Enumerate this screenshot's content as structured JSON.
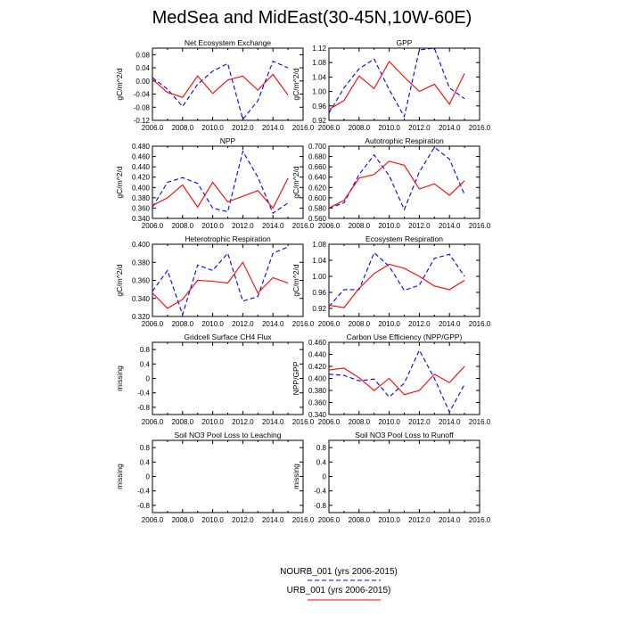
{
  "title": "MedSea and MidEast(30-45N,10W-60E)",
  "legend": [
    {
      "label": "NOURB_001 (yrs 2006-2015)",
      "color": "#0000ff",
      "dash": true
    },
    {
      "label": "URB_001 (yrs 2006-2015)",
      "color": "#ff0000",
      "dash": false
    }
  ],
  "chart_data": [
    {
      "type": "line",
      "title": "Net Ecosystem Exchange",
      "ylabel": "gC/m^2/d",
      "xlim": [
        2006,
        2016
      ],
      "ylim": [
        -0.12,
        0.1
      ],
      "xticks": [
        "2006.0",
        "2008.0",
        "2010.0",
        "2012.0",
        "2014.0",
        "2016.0"
      ],
      "yticks": [
        {
          "v": 0.08,
          "t": "0.08"
        },
        {
          "v": 0.04,
          "t": "0.04"
        },
        {
          "v": 0.0,
          "t": "0.00"
        },
        {
          "v": -0.04,
          "t": "-0.04"
        },
        {
          "v": -0.08,
          "t": "-0.08"
        },
        {
          "v": -0.12,
          "t": "-0.12"
        }
      ],
      "x": [
        2006,
        2007,
        2008,
        2009,
        2010,
        2011,
        2012,
        2013,
        2014,
        2015
      ],
      "series": [
        {
          "name": "NOURB_001",
          "values": [
            0.01,
            -0.025,
            -0.078,
            -0.01,
            0.03,
            0.053,
            -0.117,
            -0.06,
            0.06,
            0.04
          ]
        },
        {
          "name": "URB_001",
          "values": [
            0.005,
            -0.035,
            -0.05,
            0.015,
            -0.038,
            0.003,
            0.015,
            -0.028,
            0.02,
            -0.043
          ]
        }
      ]
    },
    {
      "type": "line",
      "title": "GPP",
      "ylabel": "gC/m^2/d",
      "xlim": [
        2006,
        2016
      ],
      "ylim": [
        0.92,
        1.12
      ],
      "xticks": [
        "2006.0",
        "2008.0",
        "2010.0",
        "2012.0",
        "2014.0",
        "2016.0"
      ],
      "yticks": [
        {
          "v": 1.12,
          "t": "1.12"
        },
        {
          "v": 1.08,
          "t": "1.08"
        },
        {
          "v": 1.04,
          "t": "1.04"
        },
        {
          "v": 1.0,
          "t": "1.00"
        },
        {
          "v": 0.96,
          "t": "0.96"
        },
        {
          "v": 0.92,
          "t": "0.92"
        }
      ],
      "x": [
        2006,
        2007,
        2008,
        2009,
        2010,
        2011,
        2012,
        2013,
        2014,
        2015
      ],
      "series": [
        {
          "name": "NOURB_001",
          "values": [
            0.94,
            1.01,
            1.063,
            1.09,
            1.005,
            0.93,
            1.115,
            1.12,
            1.01,
            0.98
          ]
        },
        {
          "name": "URB_001",
          "values": [
            0.95,
            0.975,
            1.043,
            1.008,
            1.083,
            1.04,
            1.0,
            1.02,
            0.965,
            1.05
          ]
        }
      ]
    },
    {
      "type": "line",
      "title": "NPP",
      "ylabel": "gC/m^2/d",
      "xlim": [
        2006,
        2016
      ],
      "ylim": [
        0.34,
        0.48
      ],
      "xticks": [
        "2006.0",
        "2008.0",
        "2010.0",
        "2012.0",
        "2014.0",
        "2016.0"
      ],
      "yticks": [
        {
          "v": 0.48,
          "t": "0.480"
        },
        {
          "v": 0.46,
          "t": "0.460"
        },
        {
          "v": 0.44,
          "t": "0.440"
        },
        {
          "v": 0.42,
          "t": "0.420"
        },
        {
          "v": 0.4,
          "t": "0.400"
        },
        {
          "v": 0.38,
          "t": "0.380"
        },
        {
          "v": 0.36,
          "t": "0.360"
        },
        {
          "v": 0.34,
          "t": "0.340"
        }
      ],
      "x": [
        2006,
        2007,
        2008,
        2009,
        2010,
        2011,
        2012,
        2013,
        2014,
        2015
      ],
      "series": [
        {
          "name": "NOURB_001",
          "values": [
            0.362,
            0.41,
            0.419,
            0.408,
            0.36,
            0.353,
            0.47,
            0.42,
            0.35,
            0.37
          ]
        },
        {
          "name": "URB_001",
          "values": [
            0.365,
            0.38,
            0.405,
            0.362,
            0.41,
            0.372,
            0.383,
            0.394,
            0.36,
            0.418
          ]
        }
      ]
    },
    {
      "type": "line",
      "title": "Autotrophic Respiration",
      "ylabel": "gC/m^2/d",
      "xlim": [
        2006,
        2016
      ],
      "ylim": [
        0.56,
        0.7
      ],
      "xticks": [
        "2006.0",
        "2008.0",
        "2010.0",
        "2012.0",
        "2014.0",
        "2016.0"
      ],
      "yticks": [
        {
          "v": 0.7,
          "t": "0.700"
        },
        {
          "v": 0.68,
          "t": "0.680"
        },
        {
          "v": 0.66,
          "t": "0.660"
        },
        {
          "v": 0.64,
          "t": "0.640"
        },
        {
          "v": 0.62,
          "t": "0.620"
        },
        {
          "v": 0.6,
          "t": "0.600"
        },
        {
          "v": 0.58,
          "t": "0.580"
        },
        {
          "v": 0.56,
          "t": "0.560"
        }
      ],
      "x": [
        2006,
        2007,
        2008,
        2009,
        2010,
        2011,
        2012,
        2013,
        2014,
        2015
      ],
      "series": [
        {
          "name": "NOURB_001",
          "values": [
            0.58,
            0.59,
            0.645,
            0.683,
            0.643,
            0.577,
            0.65,
            0.698,
            0.675,
            0.606
          ]
        },
        {
          "name": "URB_001",
          "values": [
            0.58,
            0.595,
            0.638,
            0.645,
            0.671,
            0.663,
            0.617,
            0.627,
            0.605,
            0.633
          ]
        }
      ]
    },
    {
      "type": "line",
      "title": "Heterotrophic Respiration",
      "ylabel": "gC/m^2/d",
      "xlim": [
        2006,
        2016
      ],
      "ylim": [
        0.32,
        0.4
      ],
      "xticks": [
        "2006.0",
        "2008.0",
        "2010.0",
        "2012.0",
        "2014.0",
        "2016.0"
      ],
      "yticks": [
        {
          "v": 0.4,
          "t": "0.400"
        },
        {
          "v": 0.38,
          "t": "0.380"
        },
        {
          "v": 0.36,
          "t": "0.360"
        },
        {
          "v": 0.34,
          "t": "0.340"
        },
        {
          "v": 0.32,
          "t": "0.320"
        }
      ],
      "x": [
        2006,
        2007,
        2008,
        2009,
        2010,
        2011,
        2012,
        2013,
        2014,
        2015
      ],
      "series": [
        {
          "name": "NOURB_001",
          "values": [
            0.348,
            0.371,
            0.322,
            0.377,
            0.371,
            0.39,
            0.337,
            0.342,
            0.39,
            0.397
          ]
        },
        {
          "name": "URB_001",
          "values": [
            0.346,
            0.329,
            0.339,
            0.36,
            0.359,
            0.357,
            0.38,
            0.346,
            0.363,
            0.357
          ]
        }
      ]
    },
    {
      "type": "line",
      "title": "Ecosystem Respiration",
      "ylabel": "gC/m^2/d",
      "xlim": [
        2006,
        2016
      ],
      "ylim": [
        0.9,
        1.08
      ],
      "xticks": [
        "2006.0",
        "2008.0",
        "2010.0",
        "2012.0",
        "2014.0",
        "2016.0"
      ],
      "yticks": [
        {
          "v": 1.08,
          "t": "1.08"
        },
        {
          "v": 1.04,
          "t": "1.04"
        },
        {
          "v": 1.0,
          "t": "1.00"
        },
        {
          "v": 0.96,
          "t": "0.96"
        },
        {
          "v": 0.92,
          "t": "0.92"
        }
      ],
      "x": [
        2006,
        2007,
        2008,
        2009,
        2010,
        2011,
        2012,
        2013,
        2014,
        2015
      ],
      "series": [
        {
          "name": "NOURB_001",
          "values": [
            0.925,
            0.967,
            0.967,
            1.059,
            1.025,
            0.965,
            0.978,
            1.045,
            1.055,
            1.0
          ]
        },
        {
          "name": "URB_001",
          "values": [
            0.928,
            0.922,
            0.97,
            1.007,
            1.03,
            1.02,
            1.0,
            0.976,
            0.967,
            0.99
          ]
        }
      ]
    },
    {
      "type": "line",
      "title": "Gridcell Surface CH4 Flux",
      "ylabel": "missing",
      "xlim": [
        2006,
        2016
      ],
      "ylim": [
        -1.0,
        1.0
      ],
      "xticks": [
        "2006.0",
        "2008.0",
        "2010.0",
        "2012.0",
        "2014.0",
        "2016.0"
      ],
      "yticks": [
        {
          "v": 0.8,
          "t": "0.8"
        },
        {
          "v": 0.4,
          "t": "0.4"
        },
        {
          "v": 0.0,
          "t": "0"
        },
        {
          "v": -0.4,
          "t": "-0.4"
        },
        {
          "v": -0.8,
          "t": "-0.8"
        }
      ],
      "x": [],
      "series": []
    },
    {
      "type": "line",
      "title": "Carbon Use Efficiency (NPP/GPP)",
      "ylabel": "NPP/GPP",
      "xlim": [
        2006,
        2016
      ],
      "ylim": [
        0.34,
        0.46
      ],
      "xticks": [
        "2006.0",
        "2008.0",
        "2010.0",
        "2012.0",
        "2014.0",
        "2016.0"
      ],
      "yticks": [
        {
          "v": 0.46,
          "t": "0.460"
        },
        {
          "v": 0.44,
          "t": "0.440"
        },
        {
          "v": 0.42,
          "t": "0.420"
        },
        {
          "v": 0.4,
          "t": "0.400"
        },
        {
          "v": 0.38,
          "t": "0.380"
        },
        {
          "v": 0.36,
          "t": "0.360"
        },
        {
          "v": 0.34,
          "t": "0.340"
        }
      ],
      "x": [
        2006,
        2007,
        2008,
        2009,
        2010,
        2011,
        2012,
        2013,
        2014,
        2015
      ],
      "series": [
        {
          "name": "NOURB_001",
          "values": [
            0.407,
            0.405,
            0.396,
            0.399,
            0.369,
            0.392,
            0.447,
            0.4,
            0.344,
            0.39
          ]
        },
        {
          "name": "URB_001",
          "values": [
            0.414,
            0.417,
            0.401,
            0.38,
            0.4,
            0.373,
            0.38,
            0.407,
            0.393,
            0.42
          ]
        }
      ]
    },
    {
      "type": "line",
      "title": "Soil NO3 Pool Loss to Leaching",
      "ylabel": "missing",
      "xlim": [
        2006,
        2016
      ],
      "ylim": [
        -1.0,
        1.0
      ],
      "xticks": [
        "2006.0",
        "2008.0",
        "2010.0",
        "2012.0",
        "2014.0",
        "2016.0"
      ],
      "yticks": [
        {
          "v": 0.8,
          "t": "0.8"
        },
        {
          "v": 0.4,
          "t": "0.4"
        },
        {
          "v": 0.0,
          "t": "0"
        },
        {
          "v": -0.4,
          "t": "-0.4"
        },
        {
          "v": -0.8,
          "t": "-0.8"
        }
      ],
      "x": [],
      "series": []
    },
    {
      "type": "line",
      "title": "Soil NO3 Pool Loss to Runoff",
      "ylabel": "missing",
      "xlim": [
        2006,
        2016
      ],
      "ylim": [
        -1.0,
        1.0
      ],
      "xticks": [
        "2006.0",
        "2008.0",
        "2010.0",
        "2012.0",
        "2014.0",
        "2016.0"
      ],
      "yticks": [
        {
          "v": 0.8,
          "t": "0.8"
        },
        {
          "v": 0.4,
          "t": "0.4"
        },
        {
          "v": 0.0,
          "t": "0"
        },
        {
          "v": -0.4,
          "t": "-0.4"
        },
        {
          "v": -0.8,
          "t": "-0.8"
        }
      ],
      "x": [],
      "series": []
    }
  ]
}
